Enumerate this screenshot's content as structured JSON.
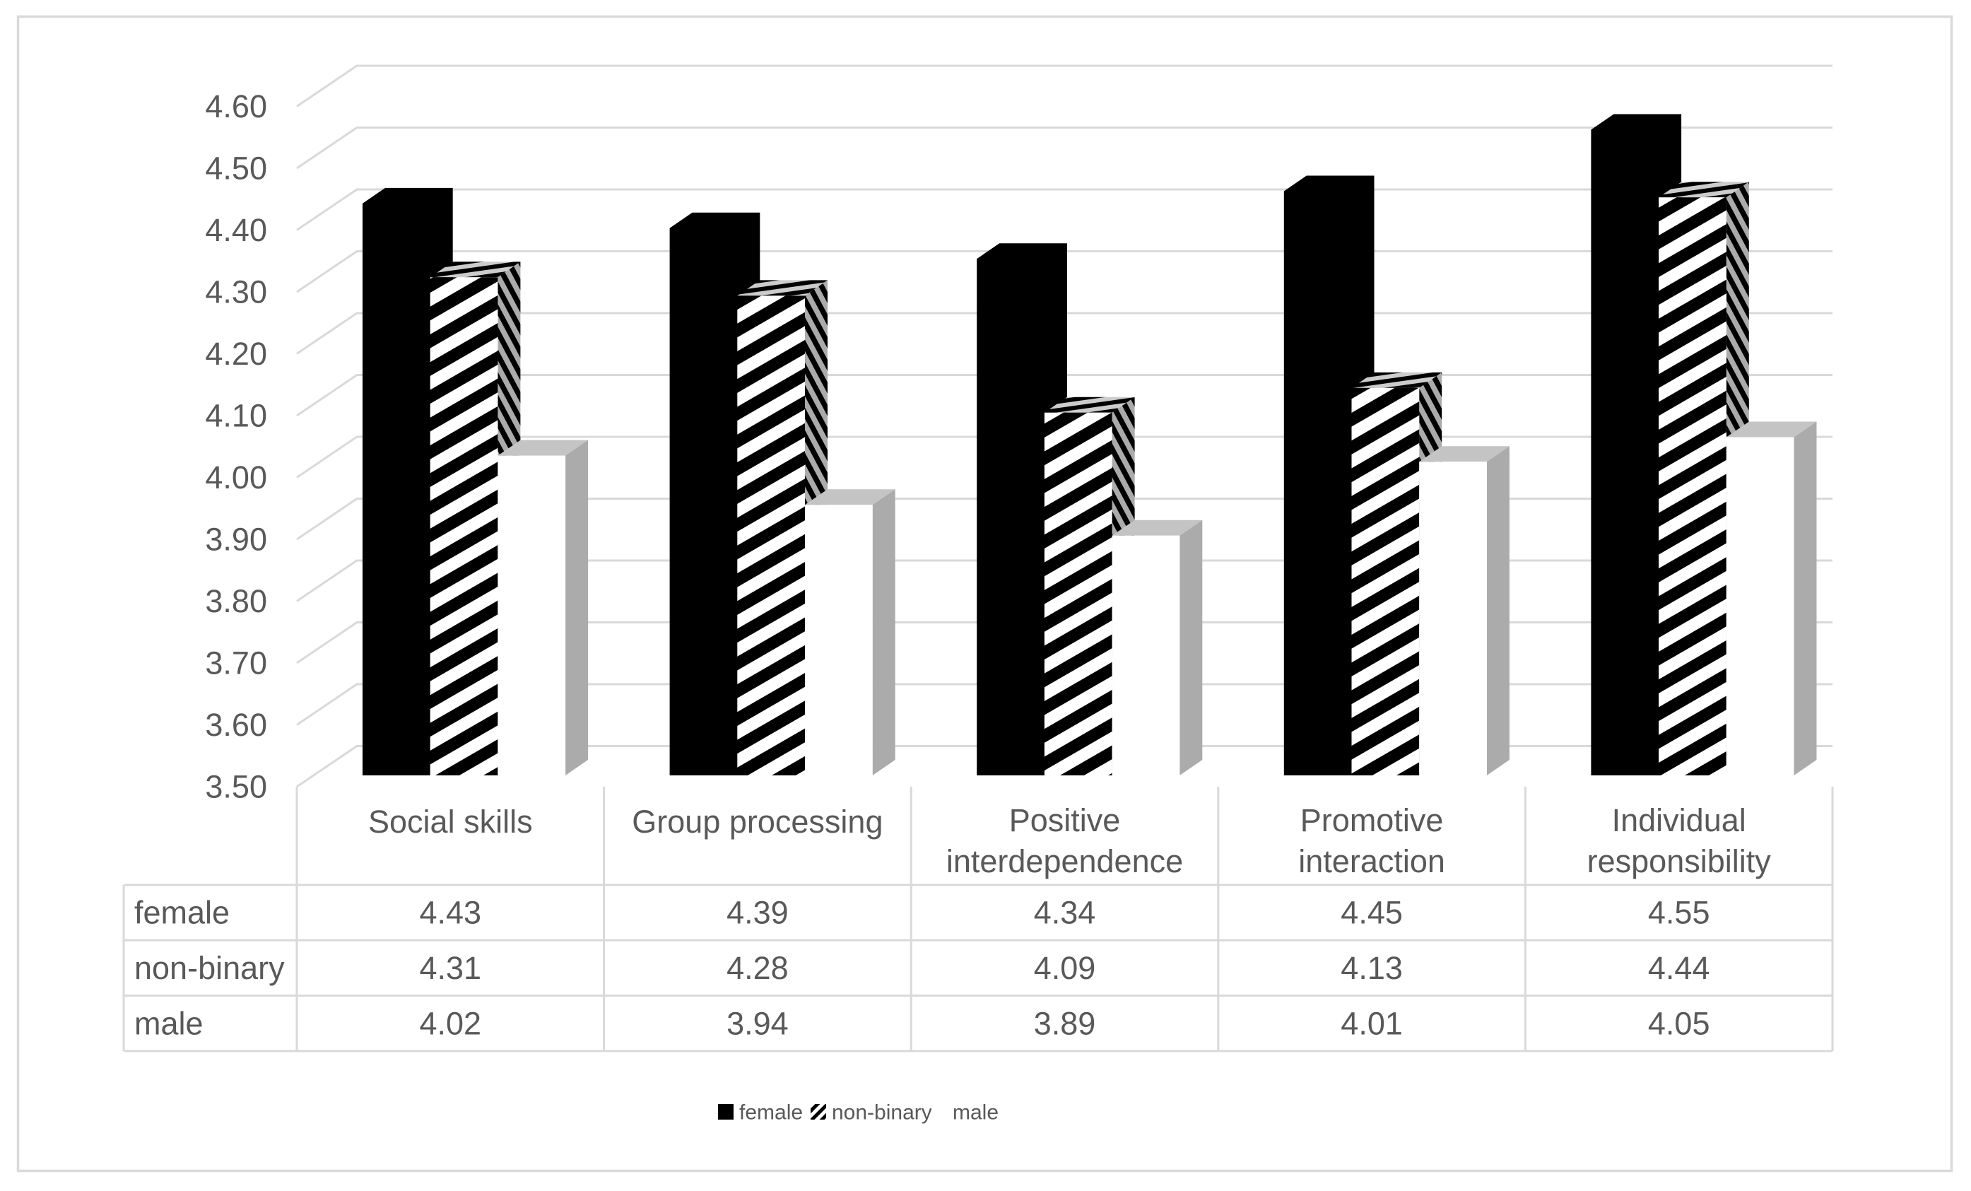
{
  "chart_data": {
    "type": "bar",
    "projection": "3d-column",
    "title": "",
    "categories": [
      "Social skills",
      "Group processing",
      "Positive interdependence",
      "Promotive interaction",
      "Individual responsibility"
    ],
    "series": [
      {
        "name": "female",
        "style": "solid-black",
        "values": [
          4.43,
          4.39,
          4.34,
          4.45,
          4.55
        ]
      },
      {
        "name": "non-binary",
        "style": "black-diagonal-stripes",
        "values": [
          4.31,
          4.28,
          4.09,
          4.13,
          4.44
        ]
      },
      {
        "name": "male",
        "style": "white-gray-3d",
        "values": [
          4.02,
          3.94,
          3.89,
          4.01,
          4.05
        ]
      }
    ],
    "ylim": [
      3.5,
      4.6
    ],
    "ytick_step": 0.1,
    "ytick_labels": [
      "3.50",
      "3.60",
      "3.70",
      "3.80",
      "3.90",
      "4.00",
      "4.10",
      "4.20",
      "4.30",
      "4.40",
      "4.50",
      "4.60"
    ],
    "grid": true,
    "legend_position": "bottom",
    "has_data_table": true
  },
  "colors": {
    "background": "#ffffff",
    "text": "#595959",
    "grid_line": "#d9d9d9",
    "bar_female": "#000000",
    "bar_stripe": "#000000",
    "male_top_face": "#c4c4c4",
    "male_side_face": "#ababab"
  }
}
